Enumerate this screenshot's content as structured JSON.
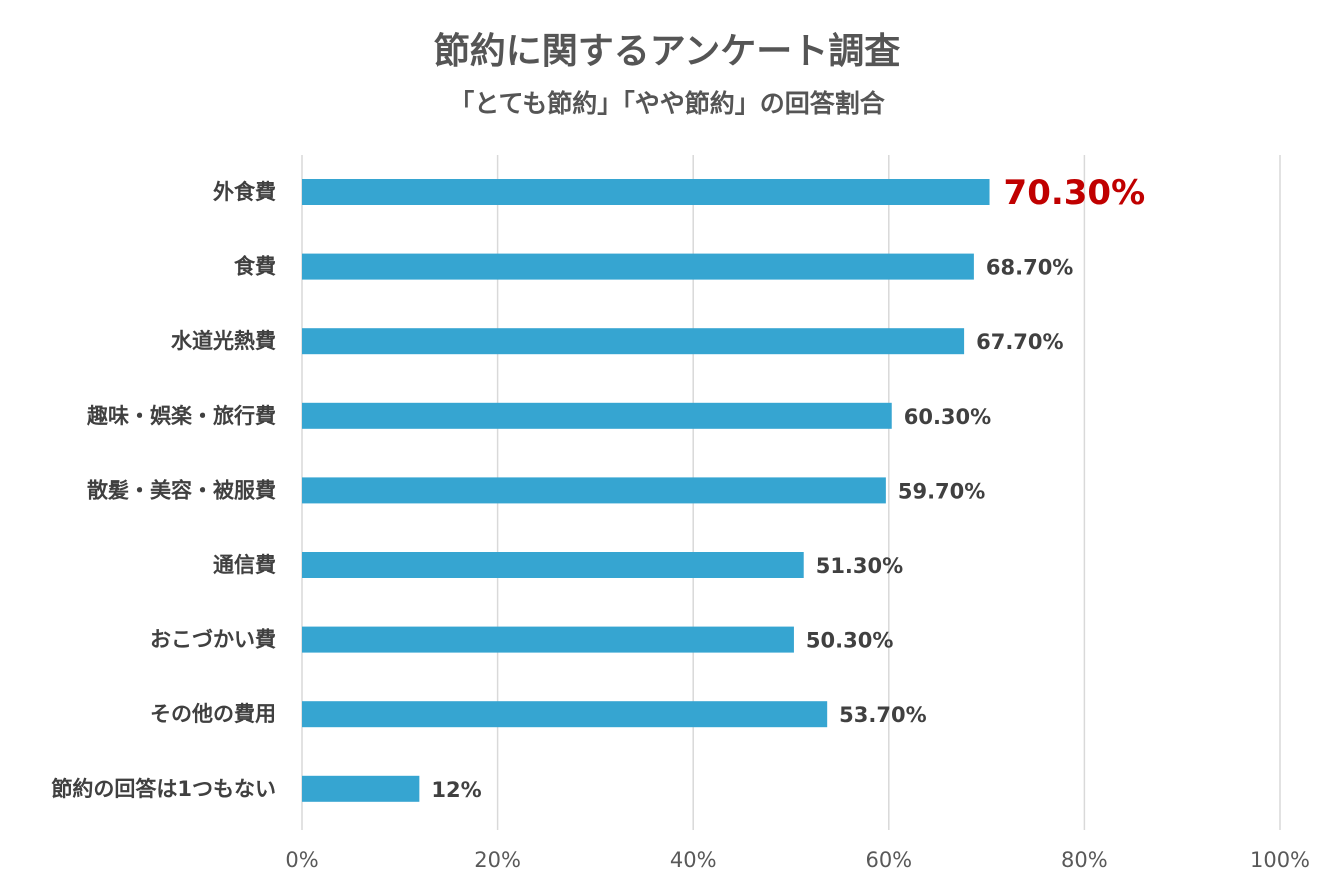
{
  "chart_data": {
    "type": "bar",
    "orientation": "horizontal",
    "title": "節約に関するアンケート調査",
    "subtitle": "「とても節約」「やや節約」の回答割合",
    "categories": [
      "外食費",
      "食費",
      "水道光熱費",
      "趣味・娯楽・旅行費",
      "散髪・美容・被服費",
      "通信費",
      "おこづかい費",
      "その他の費用",
      "節約の回答は1つもない"
    ],
    "values": [
      70.3,
      68.7,
      67.7,
      60.3,
      59.7,
      51.3,
      50.3,
      53.7,
      12
    ],
    "value_labels": [
      "70.30%",
      "68.70%",
      "67.70%",
      "60.30%",
      "59.70%",
      "51.30%",
      "50.30%",
      "53.70%",
      "12%"
    ],
    "highlight_index": 0,
    "xlim": [
      0,
      100
    ],
    "xticks": [
      0,
      20,
      40,
      60,
      80,
      100
    ],
    "xtick_labels": [
      "0%",
      "20%",
      "40%",
      "60%",
      "80%",
      "100%"
    ],
    "grid": true,
    "xlabel": "",
    "ylabel": "",
    "colors": {
      "bar": "#36a5d1",
      "highlight_text": "#c00000",
      "grid": "#d9d9d9",
      "text": "#404040",
      "title": "#555555"
    }
  }
}
